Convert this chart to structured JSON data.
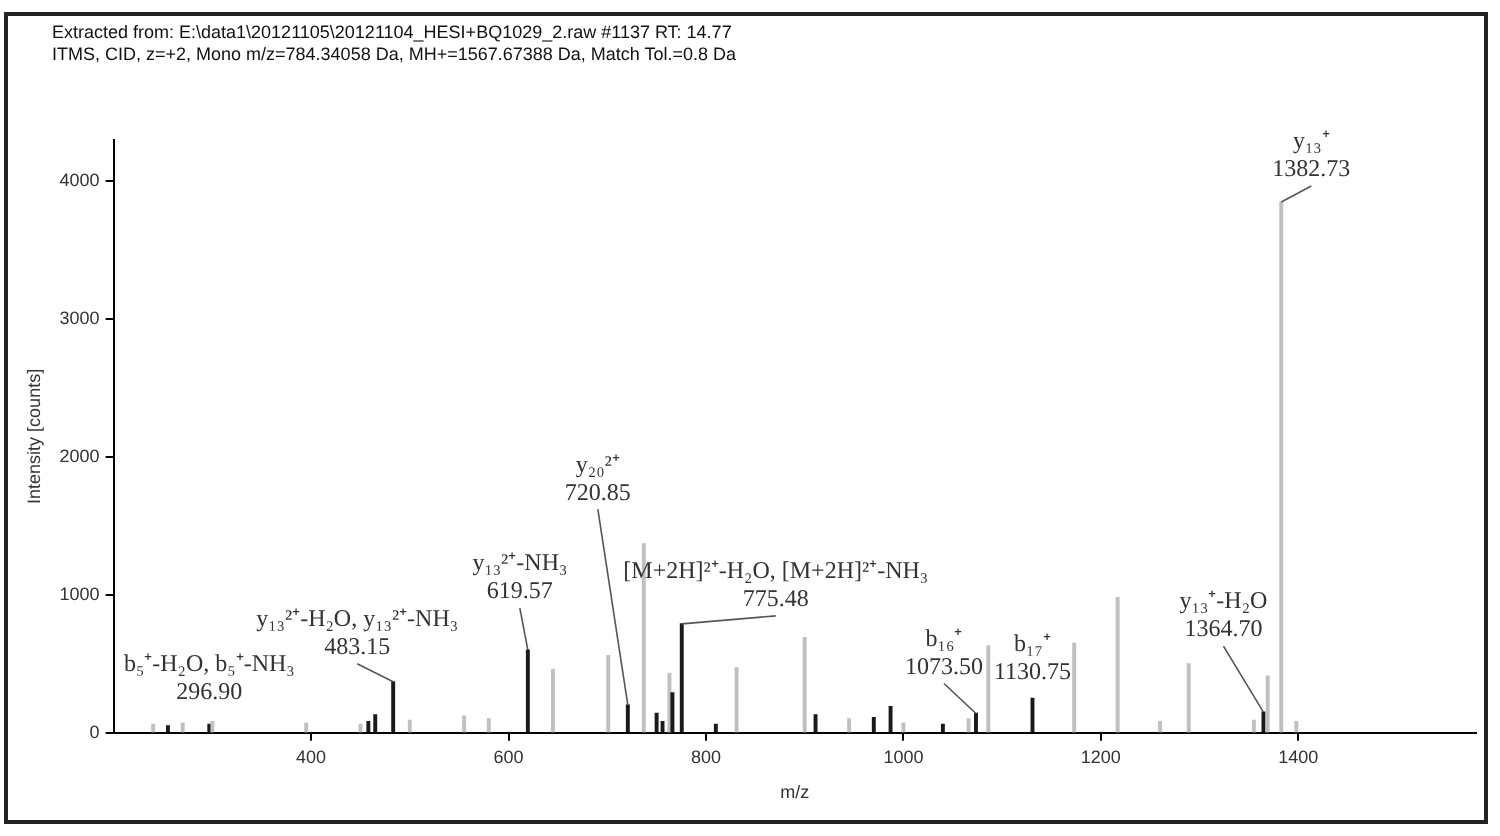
{
  "chart_data": {
    "type": "bar",
    "title": "Extracted from: E:\\data1\\20121105\\20121104_HESI+BQ1029_2.raw  #1137  RT: 14.77",
    "subtitle": "ITMS, CID, z=+2, Mono m/z=784.34058 Da, MH+=1567.67388 Da, Match Tol.=0.8 Da",
    "xlabel": "m/z",
    "ylabel": "Intensity [counts]",
    "x": [
      240,
      255,
      270,
      296.9,
      300,
      395,
      450,
      458,
      465,
      483.15,
      500,
      555,
      580,
      619.57,
      645,
      701,
      720.85,
      737,
      750,
      756,
      763,
      766,
      775.48,
      810,
      831,
      900,
      911,
      945,
      970,
      987,
      1000,
      1040,
      1066,
      1073.5,
      1086,
      1130.75,
      1173,
      1217,
      1260,
      1289,
      1355,
      1364.7,
      1369,
      1382.73,
      1398
    ],
    "values": [
      60,
      50,
      70,
      60,
      80,
      70,
      60,
      80,
      130,
      370,
      90,
      120,
      100,
      600,
      460,
      560,
      200,
      1370,
      140,
      80,
      430,
      290,
      790,
      60,
      470,
      690,
      130,
      100,
      110,
      190,
      70,
      60,
      100,
      140,
      630,
      250,
      650,
      980,
      80,
      500,
      90,
      150,
      410,
      3850,
      80
    ],
    "colors": [
      "#c0c0c0",
      "#1a1a1a",
      "#c0c0c0",
      "#1a1a1a",
      "#c0c0c0",
      "#c0c0c0",
      "#c0c0c0",
      "#1a1a1a",
      "#1a1a1a",
      "#1a1a1a",
      "#c0c0c0",
      "#c0c0c0",
      "#c0c0c0",
      "#1a1a1a",
      "#c0c0c0",
      "#c0c0c0",
      "#1a1a1a",
      "#c0c0c0",
      "#1a1a1a",
      "#1a1a1a",
      "#c0c0c0",
      "#1a1a1a",
      "#1a1a1a",
      "#1a1a1a",
      "#c0c0c0",
      "#c0c0c0",
      "#1a1a1a",
      "#c0c0c0",
      "#1a1a1a",
      "#1a1a1a",
      "#c0c0c0",
      "#1a1a1a",
      "#c0c0c0",
      "#1a1a1a",
      "#c0c0c0",
      "#1a1a1a",
      "#c0c0c0",
      "#c0c0c0",
      "#c0c0c0",
      "#c0c0c0",
      "#c0c0c0",
      "#1a1a1a",
      "#c0c0c0",
      "#c0c0c0",
      "#c0c0c0"
    ],
    "xlim": [
      200,
      1580
    ],
    "xticks": [
      400,
      600,
      800,
      1000,
      1200,
      1400
    ],
    "ylim": [
      0,
      4300
    ],
    "yticks": [
      0,
      1000,
      2000,
      3000,
      4000
    ],
    "annotations": [
      {
        "text": "b₅⁺-H₂O, b₅⁺-NH₃\n296.90",
        "x": 296.9,
        "y": 60
      },
      {
        "text": "y₁₃²⁺-H₂O, y₁₃²⁺-NH₃\n483.15",
        "x": 483.15,
        "y": 370
      },
      {
        "text": "y₁₃²⁺-NH₃\n619.57",
        "x": 619.57,
        "y": 600
      },
      {
        "text": "y₂₀²⁺\n720.85",
        "x": 720.85,
        "y": 200
      },
      {
        "text": "[M+2H]²⁺-H₂O, [M+2H]²⁺-NH₃\n775.48",
        "x": 775.48,
        "y": 790
      },
      {
        "text": "b₁₆⁺\n1073.50",
        "x": 1073.5,
        "y": 140
      },
      {
        "text": "b₁₇⁺\n1130.75",
        "x": 1130.75,
        "y": 250
      },
      {
        "text": "y₁₃⁺-H₂O\n1364.70",
        "x": 1364.7,
        "y": 150
      },
      {
        "text": "y₁₃⁺\n1382.73",
        "x": 1382.73,
        "y": 3850
      }
    ]
  }
}
